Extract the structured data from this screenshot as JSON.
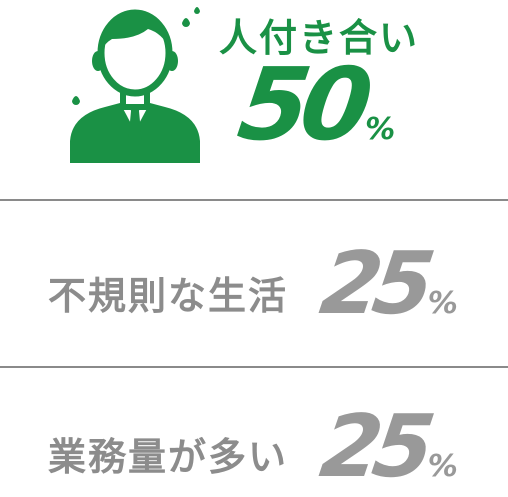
{
  "chart_data": {
    "type": "table",
    "rows": [
      {
        "label": "人付き合い",
        "value": 50,
        "unit": "%",
        "color": "#1a9145"
      },
      {
        "label": "不規則な生活",
        "value": 25,
        "unit": "%",
        "color": "#999999"
      },
      {
        "label": "業務量が多い",
        "value": 25,
        "unit": "%",
        "color": "#999999"
      }
    ]
  },
  "icon": "businessman-avatar-icon",
  "colors": {
    "accent": "#1a9145",
    "muted": "#999999",
    "divider": "#8a8a8a"
  }
}
